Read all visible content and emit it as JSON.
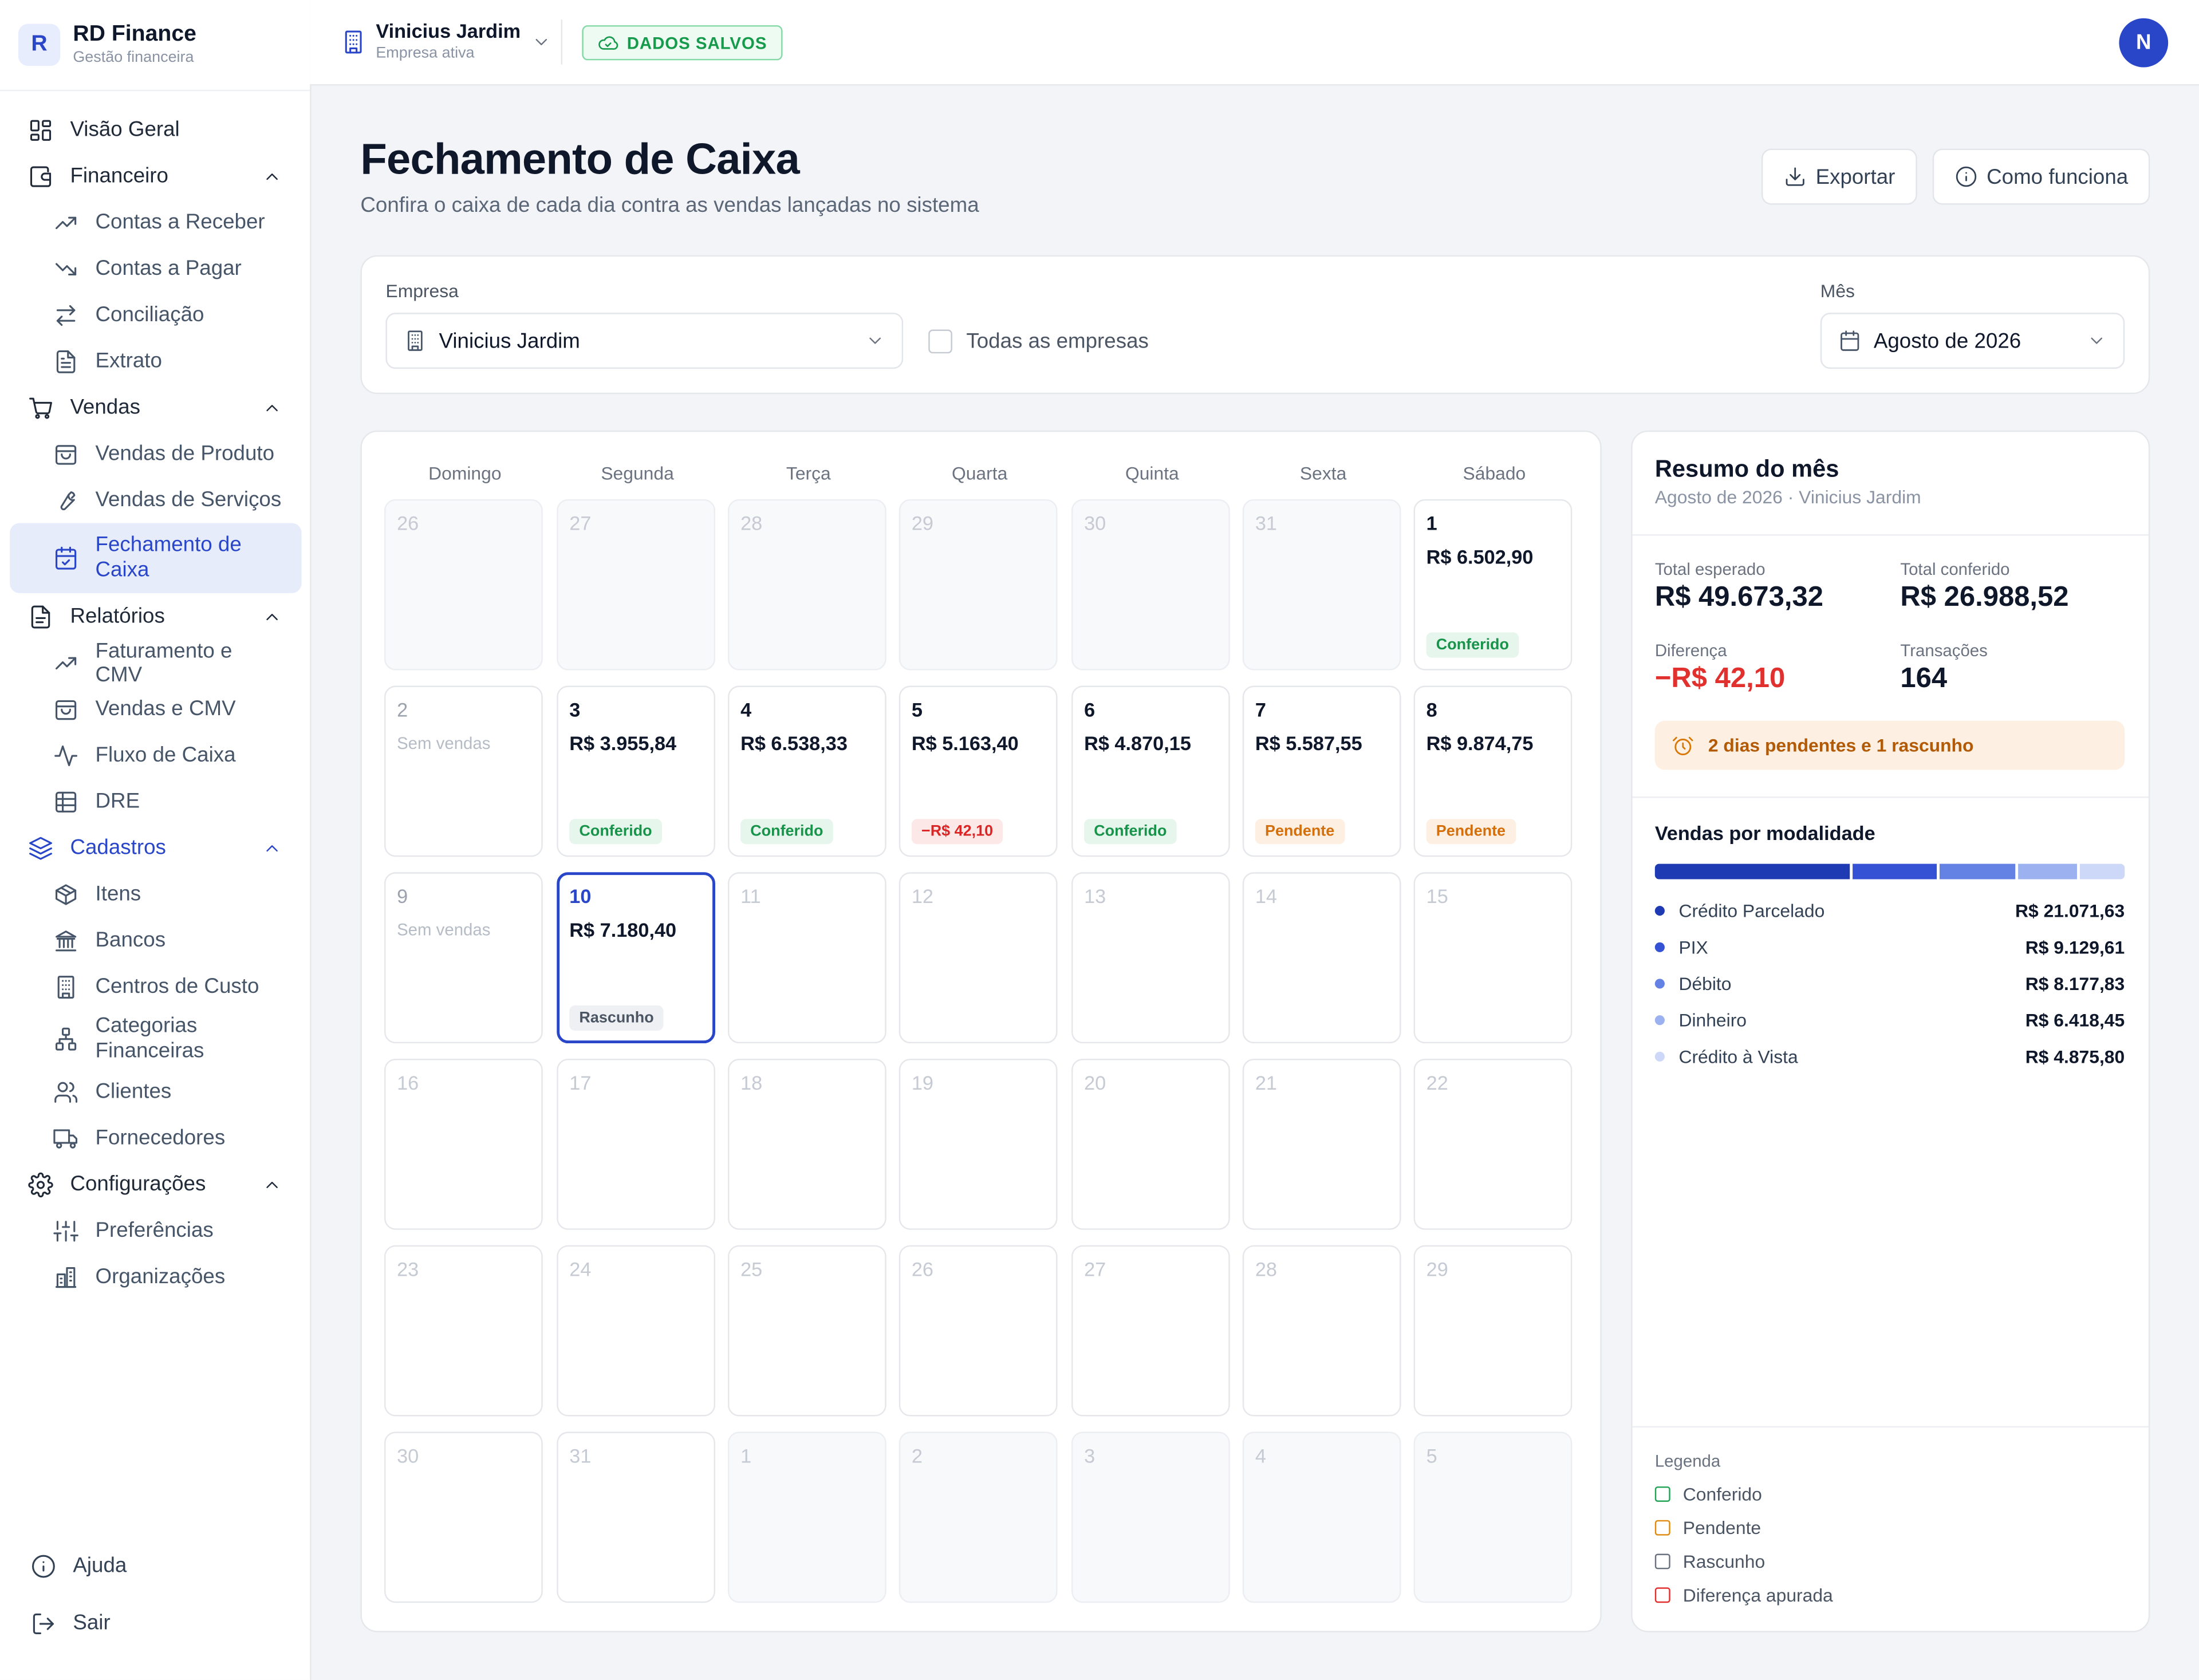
{
  "brand": {
    "logo_letter": "R",
    "name": "RD Finance",
    "subtitle": "Gestão financeira"
  },
  "sidebar": {
    "items": [
      {
        "label": "Visão Geral"
      },
      {
        "label": "Financeiro"
      },
      {
        "label": "Contas a Receber"
      },
      {
        "label": "Contas a Pagar"
      },
      {
        "label": "Conciliação"
      },
      {
        "label": "Extrato"
      },
      {
        "label": "Vendas"
      },
      {
        "label": "Vendas de Produto"
      },
      {
        "label": "Vendas de Serviços"
      },
      {
        "label": "Fechamento de Caixa"
      },
      {
        "label": "Relatórios"
      },
      {
        "label": "Faturamento e CMV"
      },
      {
        "label": "Vendas e CMV"
      },
      {
        "label": "Fluxo de Caixa"
      },
      {
        "label": "DRE"
      },
      {
        "label": "Cadastros"
      },
      {
        "label": "Itens"
      },
      {
        "label": "Bancos"
      },
      {
        "label": "Centros de Custo"
      },
      {
        "label": "Categorias Financeiras"
      },
      {
        "label": "Clientes"
      },
      {
        "label": "Fornecedores"
      },
      {
        "label": "Configurações"
      },
      {
        "label": "Preferências"
      },
      {
        "label": "Organizações"
      }
    ],
    "bottom": [
      {
        "label": "Ajuda"
      },
      {
        "label": "Sair"
      }
    ]
  },
  "topbar": {
    "company_name": "Vinicius Jardim",
    "company_sub": "Empresa ativa",
    "saved_label": "DADOS SALVOS",
    "avatar_letter": "N"
  },
  "header": {
    "title": "Fechamento de Caixa",
    "subtitle": "Confira o caixa de cada dia contra as vendas lançadas no sistema",
    "export_label": "Exportar",
    "help_label": "Como funciona"
  },
  "filters": {
    "company_label": "Empresa",
    "company_value": "Vinicius Jardim",
    "all_companies_label": "Todas as empresas",
    "all_companies_checked": false,
    "month_label": "Mês",
    "month_value": "Agosto de 2026"
  },
  "calendar": {
    "weekdays": [
      "Domingo",
      "Segunda",
      "Terça",
      "Quarta",
      "Quinta",
      "Sexta",
      "Sábado"
    ],
    "days": [
      {
        "day": "26",
        "kind": "out"
      },
      {
        "day": "27",
        "kind": "out"
      },
      {
        "day": "28",
        "kind": "out"
      },
      {
        "day": "29",
        "kind": "out"
      },
      {
        "day": "30",
        "kind": "out"
      },
      {
        "day": "31",
        "kind": "out"
      },
      {
        "day": "1",
        "kind": "sales",
        "amount": "R$ 6.502,90",
        "status": "Conferido",
        "status_type": "ok"
      },
      {
        "day": "2",
        "kind": "empty",
        "note": "Sem vendas"
      },
      {
        "day": "3",
        "kind": "sales",
        "amount": "R$ 3.955,84",
        "status": "Conferido",
        "status_type": "ok"
      },
      {
        "day": "4",
        "kind": "sales",
        "amount": "R$ 6.538,33",
        "status": "Conferido",
        "status_type": "ok"
      },
      {
        "day": "5",
        "kind": "sales",
        "amount": "R$ 5.163,40",
        "status": "−R$ 42,10",
        "status_type": "diff"
      },
      {
        "day": "6",
        "kind": "sales",
        "amount": "R$ 4.870,15",
        "status": "Conferido",
        "status_type": "ok"
      },
      {
        "day": "7",
        "kind": "sales",
        "amount": "R$ 5.587,55",
        "status": "Pendente",
        "status_type": "pend"
      },
      {
        "day": "8",
        "kind": "sales",
        "amount": "R$ 9.874,75",
        "status": "Pendente",
        "status_type": "pend"
      },
      {
        "day": "9",
        "kind": "empty",
        "note": "Sem vendas"
      },
      {
        "day": "10",
        "kind": "sales",
        "selected": true,
        "amount": "R$ 7.180,40",
        "status": "Rascunho",
        "status_type": "draft"
      },
      {
        "day": "11",
        "kind": "future"
      },
      {
        "day": "12",
        "kind": "future"
      },
      {
        "day": "13",
        "kind": "future"
      },
      {
        "day": "14",
        "kind": "future"
      },
      {
        "day": "15",
        "kind": "future"
      },
      {
        "day": "16",
        "kind": "future"
      },
      {
        "day": "17",
        "kind": "future"
      },
      {
        "day": "18",
        "kind": "future"
      },
      {
        "day": "19",
        "kind": "future"
      },
      {
        "day": "20",
        "kind": "future"
      },
      {
        "day": "21",
        "kind": "future"
      },
      {
        "day": "22",
        "kind": "future"
      },
      {
        "day": "23",
        "kind": "future"
      },
      {
        "day": "24",
        "kind": "future"
      },
      {
        "day": "25",
        "kind": "future"
      },
      {
        "day": "26",
        "kind": "future"
      },
      {
        "day": "27",
        "kind": "future"
      },
      {
        "day": "28",
        "kind": "future"
      },
      {
        "day": "29",
        "kind": "future"
      },
      {
        "day": "30",
        "kind": "future"
      },
      {
        "day": "31",
        "kind": "future"
      },
      {
        "day": "1",
        "kind": "out"
      },
      {
        "day": "2",
        "kind": "out"
      },
      {
        "day": "3",
        "kind": "out"
      },
      {
        "day": "4",
        "kind": "out"
      },
      {
        "day": "5",
        "kind": "out"
      }
    ]
  },
  "summary": {
    "title": "Resumo do mês",
    "subtitle": "Agosto de 2026 · Vinicius Jardim",
    "expected_label": "Total esperado",
    "expected_value": "R$ 49.673,32",
    "checked_label": "Total conferido",
    "checked_value": "R$ 26.988,52",
    "diff_label": "Diferença",
    "diff_value": "−R$ 42,10",
    "tx_label": "Transações",
    "tx_value": "164",
    "alert": "2 dias pendentes e 1 rascunho",
    "modalities_title": "Vendas por modalidade",
    "modalities": [
      {
        "name": "Crédito Parcelado",
        "value": "R$ 21.071,63",
        "amount": 21071.63,
        "color": "#1f3bb3"
      },
      {
        "name": "PIX",
        "value": "R$ 9.129,61",
        "amount": 9129.61,
        "color": "#3552d4"
      },
      {
        "name": "Débito",
        "value": "R$ 8.177,83",
        "amount": 8177.83,
        "color": "#6382e3"
      },
      {
        "name": "Dinheiro",
        "value": "R$ 6.418,45",
        "amount": 6418.45,
        "color": "#9cb1ef"
      },
      {
        "name": "Crédito à Vista",
        "value": "R$ 4.875,80",
        "amount": 4875.8,
        "color": "#cdd8f8"
      }
    ],
    "legend_title": "Legenda",
    "legend": [
      {
        "label": "Conferido",
        "color": "#22a355"
      },
      {
        "label": "Pendente",
        "color": "#e08a10"
      },
      {
        "label": "Rascunho",
        "color": "#6b7280"
      },
      {
        "label": "Diferença apurada",
        "color": "#e0312f"
      }
    ]
  }
}
